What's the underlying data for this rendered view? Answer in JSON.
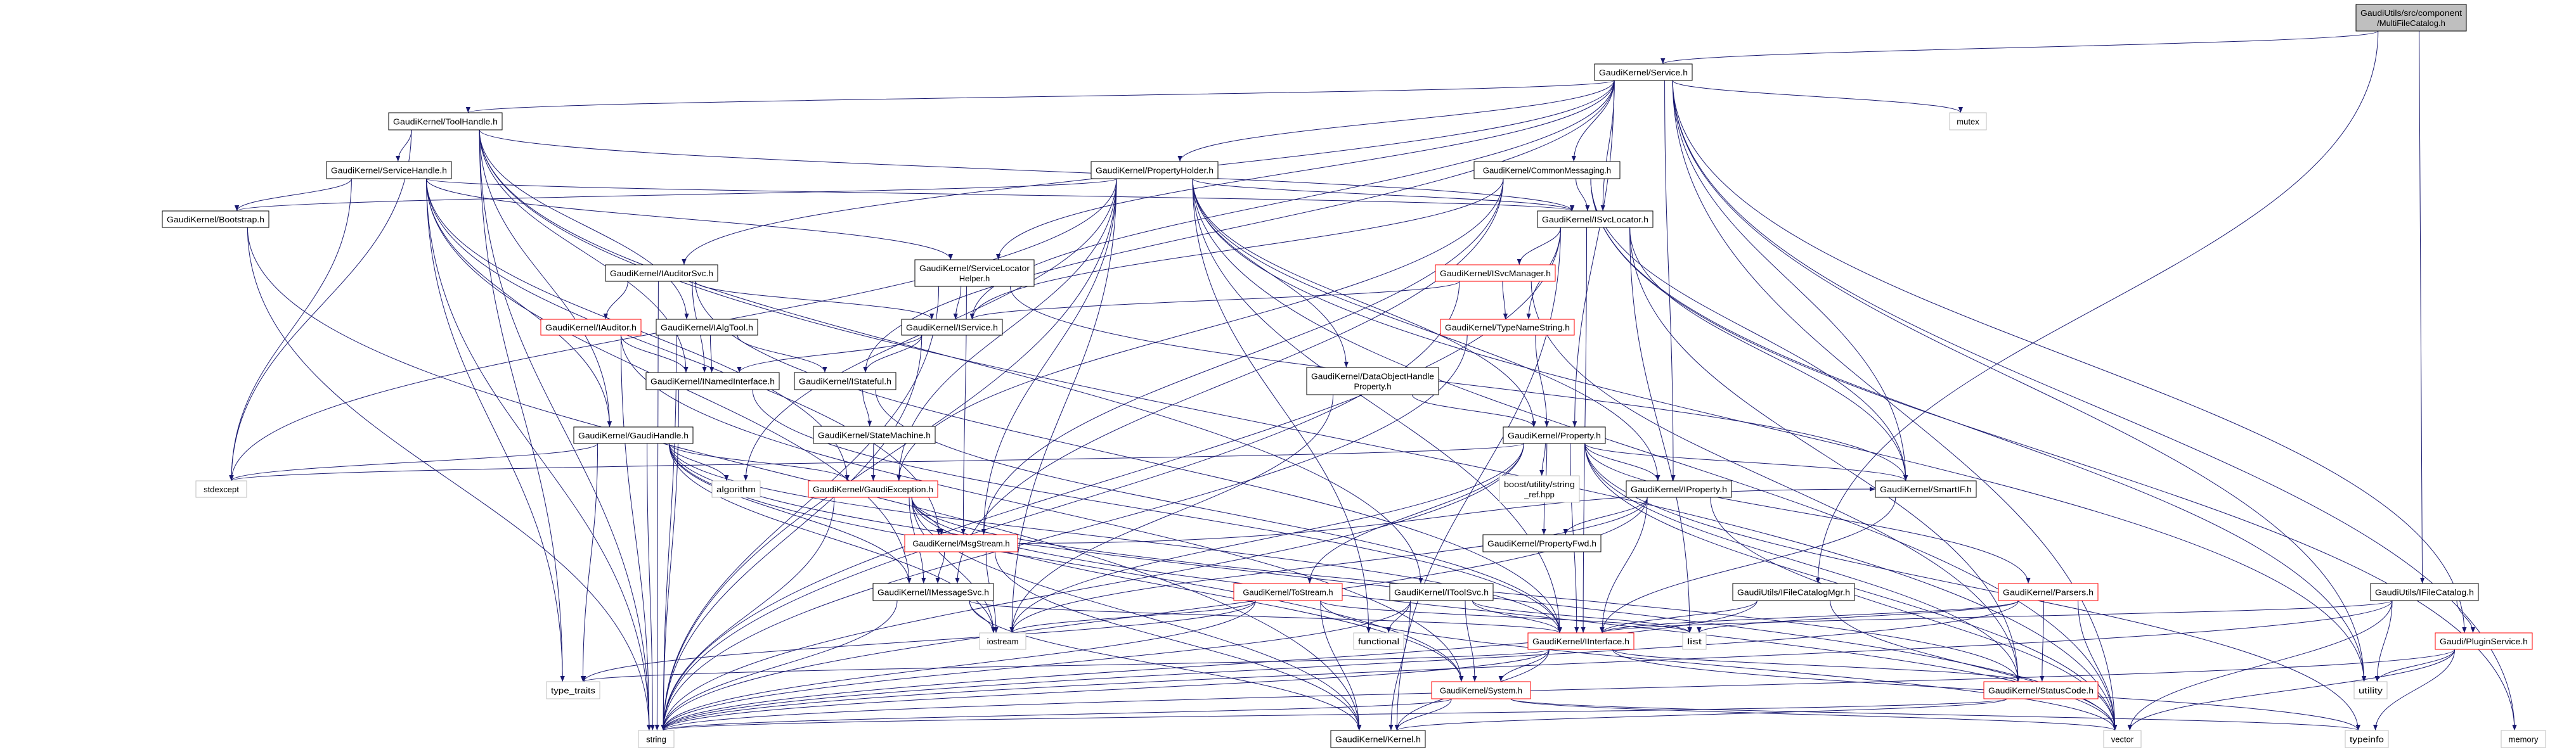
{
  "colors": {
    "edge": "#191970",
    "border_normal": "#000000",
    "border_truncated": "#ff0000",
    "border_external": "#bfbfbf",
    "root_fill": "#bfbfbf"
  },
  "nodes": [
    {
      "id": "multifilecatalog",
      "label": [
        "GaudiUtils/src/component",
        "/MultiFileCatalog.h"
      ],
      "kind": "root"
    },
    {
      "id": "service",
      "label": [
        "GaudiKernel/Service.h"
      ],
      "kind": "normal"
    },
    {
      "id": "toolhandle",
      "label": [
        "GaudiKernel/ToolHandle.h"
      ],
      "kind": "normal"
    },
    {
      "id": "mutex",
      "label": [
        "mutex"
      ],
      "kind": "external"
    },
    {
      "id": "servicehandle",
      "label": [
        "GaudiKernel/ServiceHandle.h"
      ],
      "kind": "normal"
    },
    {
      "id": "propertyholder",
      "label": [
        "GaudiKernel/PropertyHolder.h"
      ],
      "kind": "normal"
    },
    {
      "id": "commonmessaging",
      "label": [
        "GaudiKernel/CommonMessaging.h"
      ],
      "kind": "normal"
    },
    {
      "id": "bootstrap",
      "label": [
        "GaudiKernel/Bootstrap.h"
      ],
      "kind": "normal"
    },
    {
      "id": "isvclocator",
      "label": [
        "GaudiKernel/ISvcLocator.h"
      ],
      "kind": "normal"
    },
    {
      "id": "iauditorsvc",
      "label": [
        "GaudiKernel/IAuditorSvc.h"
      ],
      "kind": "normal"
    },
    {
      "id": "servicelocatorhelper",
      "label": [
        "GaudiKernel/ServiceLocator",
        "Helper.h"
      ],
      "kind": "normal"
    },
    {
      "id": "isvcmanager",
      "label": [
        "GaudiKernel/ISvcManager.h"
      ],
      "kind": "truncated"
    },
    {
      "id": "iauditor",
      "label": [
        "GaudiKernel/IAuditor.h"
      ],
      "kind": "truncated"
    },
    {
      "id": "ialgtool",
      "label": [
        "GaudiKernel/IAlgTool.h"
      ],
      "kind": "normal"
    },
    {
      "id": "iservice",
      "label": [
        "GaudiKernel/IService.h"
      ],
      "kind": "normal"
    },
    {
      "id": "typenamestring",
      "label": [
        "GaudiKernel/TypeNameString.h"
      ],
      "kind": "truncated"
    },
    {
      "id": "inamedinterface",
      "label": [
        "GaudiKernel/INamedInterface.h"
      ],
      "kind": "normal"
    },
    {
      "id": "istateful",
      "label": [
        "GaudiKernel/IStateful.h"
      ],
      "kind": "normal"
    },
    {
      "id": "dataobjecthandleproperty",
      "label": [
        "GaudiKernel/DataObjectHandle",
        "Property.h"
      ],
      "kind": "normal"
    },
    {
      "id": "gaudihandle",
      "label": [
        "GaudiKernel/GaudiHandle.h"
      ],
      "kind": "normal"
    },
    {
      "id": "statemachine",
      "label": [
        "GaudiKernel/StateMachine.h"
      ],
      "kind": "normal"
    },
    {
      "id": "property",
      "label": [
        "GaudiKernel/Property.h"
      ],
      "kind": "normal"
    },
    {
      "id": "stdexcept",
      "label": [
        "stdexcept"
      ],
      "kind": "external"
    },
    {
      "id": "algorithm",
      "label": [
        "algorithm"
      ],
      "kind": "external"
    },
    {
      "id": "gaudiexception",
      "label": [
        "GaudiKernel/GaudiException.h"
      ],
      "kind": "truncated"
    },
    {
      "id": "boost",
      "label": [
        "boost/utility/string",
        "_ref.hpp"
      ],
      "kind": "external"
    },
    {
      "id": "iproperty",
      "label": [
        "GaudiKernel/IProperty.h"
      ],
      "kind": "normal"
    },
    {
      "id": "smartif",
      "label": [
        "GaudiKernel/SmartIF.h"
      ],
      "kind": "normal"
    },
    {
      "id": "msgstream",
      "label": [
        "GaudiKernel/MsgStream.h"
      ],
      "kind": "truncated"
    },
    {
      "id": "propertyfwd",
      "label": [
        "GaudiKernel/PropertyFwd.h"
      ],
      "kind": "normal"
    },
    {
      "id": "imessagesvc",
      "label": [
        "GaudiKernel/IMessageSvc.h"
      ],
      "kind": "normal"
    },
    {
      "id": "tostream",
      "label": [
        "GaudiKernel/ToStream.h"
      ],
      "kind": "truncated"
    },
    {
      "id": "itoolsvc",
      "label": [
        "GaudiKernel/IToolSvc.h"
      ],
      "kind": "normal"
    },
    {
      "id": "ifilecatalogmgr",
      "label": [
        "GaudiUtils/IFileCatalogMgr.h"
      ],
      "kind": "normal"
    },
    {
      "id": "parsers",
      "label": [
        "GaudiKernel/Parsers.h"
      ],
      "kind": "truncated"
    },
    {
      "id": "ifilecatalog",
      "label": [
        "GaudiUtils/IFileCatalog.h"
      ],
      "kind": "normal"
    },
    {
      "id": "iostream",
      "label": [
        "iostream"
      ],
      "kind": "external"
    },
    {
      "id": "functional",
      "label": [
        "functional"
      ],
      "kind": "external"
    },
    {
      "id": "iinterface",
      "label": [
        "GaudiKernel/IInterface.h"
      ],
      "kind": "truncated"
    },
    {
      "id": "list",
      "label": [
        "list"
      ],
      "kind": "external"
    },
    {
      "id": "pluginservice",
      "label": [
        "Gaudi/PluginService.h"
      ],
      "kind": "truncated"
    },
    {
      "id": "type_traits",
      "label": [
        "type_traits"
      ],
      "kind": "external"
    },
    {
      "id": "system",
      "label": [
        "GaudiKernel/System.h"
      ],
      "kind": "truncated"
    },
    {
      "id": "statuscode",
      "label": [
        "GaudiKernel/StatusCode.h"
      ],
      "kind": "truncated"
    },
    {
      "id": "utility",
      "label": [
        "utility"
      ],
      "kind": "external"
    },
    {
      "id": "string",
      "label": [
        "string"
      ],
      "kind": "external"
    },
    {
      "id": "kernel",
      "label": [
        "GaudiKernel/Kernel.h"
      ],
      "kind": "normal"
    },
    {
      "id": "vector",
      "label": [
        "vector"
      ],
      "kind": "external"
    },
    {
      "id": "typeinfo",
      "label": [
        "typeinfo"
      ],
      "kind": "external"
    },
    {
      "id": "memory",
      "label": [
        "memory"
      ],
      "kind": "external"
    }
  ],
  "edges": [
    [
      "multifilecatalog",
      "service"
    ],
    [
      "multifilecatalog",
      "ifilecatalogmgr"
    ],
    [
      "multifilecatalog",
      "ifilecatalog"
    ],
    [
      "service",
      "toolhandle"
    ],
    [
      "service",
      "mutex"
    ],
    [
      "service",
      "propertyholder"
    ],
    [
      "service",
      "commonmessaging"
    ],
    [
      "service",
      "isvclocator"
    ],
    [
      "service",
      "servicelocatorhelper"
    ],
    [
      "service",
      "iauditorsvc"
    ],
    [
      "service",
      "iservice"
    ],
    [
      "service",
      "istateful"
    ],
    [
      "service",
      "property"
    ],
    [
      "service",
      "iproperty"
    ],
    [
      "service",
      "smartif"
    ],
    [
      "service",
      "vector"
    ],
    [
      "service",
      "utility"
    ],
    [
      "service",
      "pluginservice"
    ],
    [
      "service",
      "memory"
    ],
    [
      "toolhandle",
      "servicehandle"
    ],
    [
      "toolhandle",
      "ialgtool"
    ],
    [
      "toolhandle",
      "itoolsvc"
    ],
    [
      "toolhandle",
      "gaudihandle"
    ],
    [
      "toolhandle",
      "inamedinterface"
    ],
    [
      "toolhandle",
      "stdexcept"
    ],
    [
      "toolhandle",
      "type_traits"
    ],
    [
      "toolhandle",
      "string"
    ],
    [
      "toolhandle",
      "vector"
    ],
    [
      "toolhandle",
      "isvclocator"
    ],
    [
      "servicehandle",
      "bootstrap"
    ],
    [
      "servicehandle",
      "isvclocator"
    ],
    [
      "servicehandle",
      "servicelocatorhelper"
    ],
    [
      "servicehandle",
      "gaudihandle"
    ],
    [
      "servicehandle",
      "gaudiexception"
    ],
    [
      "servicehandle",
      "imessagesvc"
    ],
    [
      "servicehandle",
      "msgstream"
    ],
    [
      "servicehandle",
      "stdexcept"
    ],
    [
      "servicehandle",
      "string"
    ],
    [
      "servicehandle",
      "type_traits"
    ],
    [
      "bootstrap",
      "string"
    ],
    [
      "bootstrap",
      "kernel"
    ],
    [
      "propertyholder",
      "bootstrap"
    ],
    [
      "propertyholder",
      "isvclocator"
    ],
    [
      "propertyholder",
      "iproperty"
    ],
    [
      "propertyholder",
      "property"
    ],
    [
      "propertyholder",
      "dataobjecthandleproperty"
    ],
    [
      "propertyholder",
      "gaudiexception"
    ],
    [
      "propertyholder",
      "msgstream"
    ],
    [
      "propertyholder",
      "iinterface"
    ],
    [
      "propertyholder",
      "stdexcept"
    ],
    [
      "propertyholder",
      "string"
    ],
    [
      "propertyholder",
      "vector"
    ],
    [
      "propertyholder",
      "iostream"
    ],
    [
      "propertyholder",
      "functional"
    ],
    [
      "propertyholder",
      "algorithm"
    ],
    [
      "propertyholder",
      "utility"
    ],
    [
      "commonmessaging",
      "isvclocator"
    ],
    [
      "commonmessaging",
      "iservice"
    ],
    [
      "commonmessaging",
      "imessagesvc"
    ],
    [
      "commonmessaging",
      "msgstream"
    ],
    [
      "commonmessaging",
      "gaudiexception"
    ],
    [
      "commonmessaging",
      "smartif"
    ],
    [
      "commonmessaging",
      "utility"
    ],
    [
      "commonmessaging",
      "memory"
    ],
    [
      "isvclocator",
      "isvcmanager"
    ],
    [
      "isvclocator",
      "typenamestring"
    ],
    [
      "isvclocator",
      "smartif"
    ],
    [
      "isvclocator",
      "iinterface"
    ],
    [
      "isvclocator",
      "statuscode"
    ],
    [
      "isvclocator",
      "list"
    ],
    [
      "isvclocator",
      "string"
    ],
    [
      "isvclocator",
      "kernel"
    ],
    [
      "iauditorsvc",
      "iauditor"
    ],
    [
      "iauditorsvc",
      "iservice"
    ],
    [
      "iauditorsvc",
      "inamedinterface"
    ],
    [
      "iauditorsvc",
      "string"
    ],
    [
      "iauditorsvc",
      "iinterface"
    ],
    [
      "iauditor",
      "inamedinterface"
    ],
    [
      "iauditor",
      "string"
    ],
    [
      "iauditor",
      "system"
    ],
    [
      "ialgtool",
      "inamedinterface"
    ],
    [
      "ialgtool",
      "istateful"
    ],
    [
      "ialgtool",
      "string"
    ],
    [
      "servicelocatorhelper",
      "iservice"
    ],
    [
      "servicelocatorhelper",
      "msgstream"
    ],
    [
      "servicelocatorhelper",
      "smartif"
    ],
    [
      "servicelocatorhelper",
      "string"
    ],
    [
      "isvcmanager",
      "iservice"
    ],
    [
      "isvcmanager",
      "typenamestring"
    ],
    [
      "isvcmanager",
      "string"
    ],
    [
      "isvcmanager",
      "statuscode"
    ],
    [
      "iservice",
      "inamedinterface"
    ],
    [
      "iservice",
      "istateful"
    ],
    [
      "iservice",
      "string"
    ],
    [
      "typenamestring",
      "property"
    ],
    [
      "typenamestring",
      "string"
    ],
    [
      "inamedinterface",
      "iinterface"
    ],
    [
      "inamedinterface",
      "string"
    ],
    [
      "istateful",
      "statemachine"
    ],
    [
      "istateful",
      "iinterface"
    ],
    [
      "dataobjecthandleproperty",
      "property"
    ],
    [
      "dataobjecthandleproperty",
      "iostream"
    ],
    [
      "statemachine",
      "gaudiexception"
    ],
    [
      "gaudihandle",
      "gaudiexception"
    ],
    [
      "gaudihandle",
      "iinterface"
    ],
    [
      "gaudihandle",
      "system"
    ],
    [
      "gaudihandle",
      "stdexcept"
    ],
    [
      "gaudihandle",
      "algorithm"
    ],
    [
      "gaudihandle",
      "string"
    ],
    [
      "gaudihandle",
      "type_traits"
    ],
    [
      "gaudihandle",
      "vector"
    ],
    [
      "gaudihandle",
      "iostream"
    ],
    [
      "gaudihandle",
      "imessagesvc"
    ],
    [
      "gaudiexception",
      "msgstream"
    ],
    [
      "gaudiexception",
      "imessagesvc"
    ],
    [
      "gaudiexception",
      "system"
    ],
    [
      "gaudiexception",
      "string"
    ],
    [
      "gaudiexception",
      "kernel"
    ],
    [
      "gaudiexception",
      "statuscode"
    ],
    [
      "gaudiexception",
      "iostream"
    ],
    [
      "gaudiexception",
      "vector"
    ],
    [
      "property",
      "iproperty"
    ],
    [
      "property",
      "propertyfwd"
    ],
    [
      "property",
      "boost"
    ],
    [
      "property",
      "smartif"
    ],
    [
      "property",
      "tostream"
    ],
    [
      "property",
      "parsers"
    ],
    [
      "property",
      "stdexcept"
    ],
    [
      "property",
      "string"
    ],
    [
      "property",
      "statuscode"
    ],
    [
      "property",
      "iinterface"
    ],
    [
      "property",
      "iostream"
    ],
    [
      "property",
      "vector"
    ],
    [
      "property",
      "typeinfo"
    ],
    [
      "iproperty",
      "propertyfwd"
    ],
    [
      "iproperty",
      "iinterface"
    ],
    [
      "iproperty",
      "string"
    ],
    [
      "iproperty",
      "vector"
    ],
    [
      "iproperty",
      "iostream"
    ],
    [
      "msgstream",
      "imessagesvc"
    ],
    [
      "msgstream",
      "smartif"
    ],
    [
      "msgstream",
      "iostream"
    ],
    [
      "msgstream",
      "kernel"
    ],
    [
      "imessagesvc",
      "iinterface"
    ],
    [
      "imessagesvc",
      "iostream"
    ],
    [
      "imessagesvc",
      "string"
    ],
    [
      "imessagesvc",
      "kernel"
    ],
    [
      "tostream",
      "iostream"
    ],
    [
      "tostream",
      "list"
    ],
    [
      "tostream",
      "string"
    ],
    [
      "tostream",
      "type_traits"
    ],
    [
      "tostream",
      "vector"
    ],
    [
      "tostream",
      "kernel"
    ],
    [
      "itoolsvc",
      "iinterface"
    ],
    [
      "itoolsvc",
      "list"
    ],
    [
      "itoolsvc",
      "functional"
    ],
    [
      "itoolsvc",
      "system"
    ],
    [
      "itoolsvc",
      "string"
    ],
    [
      "itoolsvc",
      "kernel"
    ],
    [
      "ifilecatalogmgr",
      "iinterface"
    ],
    [
      "ifilecatalogmgr",
      "string"
    ],
    [
      "ifilecatalogmgr",
      "vector"
    ],
    [
      "parsers",
      "statuscode"
    ],
    [
      "parsers",
      "iinterface"
    ],
    [
      "parsers",
      "vector"
    ],
    [
      "parsers",
      "string"
    ],
    [
      "parsers",
      "list"
    ],
    [
      "ifilecatalog",
      "iinterface"
    ],
    [
      "ifilecatalog",
      "pluginservice"
    ],
    [
      "ifilecatalog",
      "utility"
    ],
    [
      "ifilecatalog",
      "string"
    ],
    [
      "ifilecatalog",
      "vector"
    ],
    [
      "pluginservice",
      "utility"
    ],
    [
      "pluginservice",
      "typeinfo"
    ],
    [
      "pluginservice",
      "string"
    ],
    [
      "pluginservice",
      "vector"
    ],
    [
      "iinterface",
      "system"
    ],
    [
      "iinterface",
      "statuscode"
    ],
    [
      "iinterface",
      "kernel"
    ],
    [
      "iinterface",
      "type_traits"
    ],
    [
      "iinterface",
      "typeinfo"
    ],
    [
      "iinterface",
      "string"
    ],
    [
      "system",
      "kernel"
    ],
    [
      "system",
      "string"
    ],
    [
      "system",
      "vector"
    ],
    [
      "system",
      "typeinfo"
    ],
    [
      "statuscode",
      "kernel"
    ],
    [
      "statuscode",
      "string"
    ],
    [
      "smartif",
      "iinterface"
    ]
  ]
}
